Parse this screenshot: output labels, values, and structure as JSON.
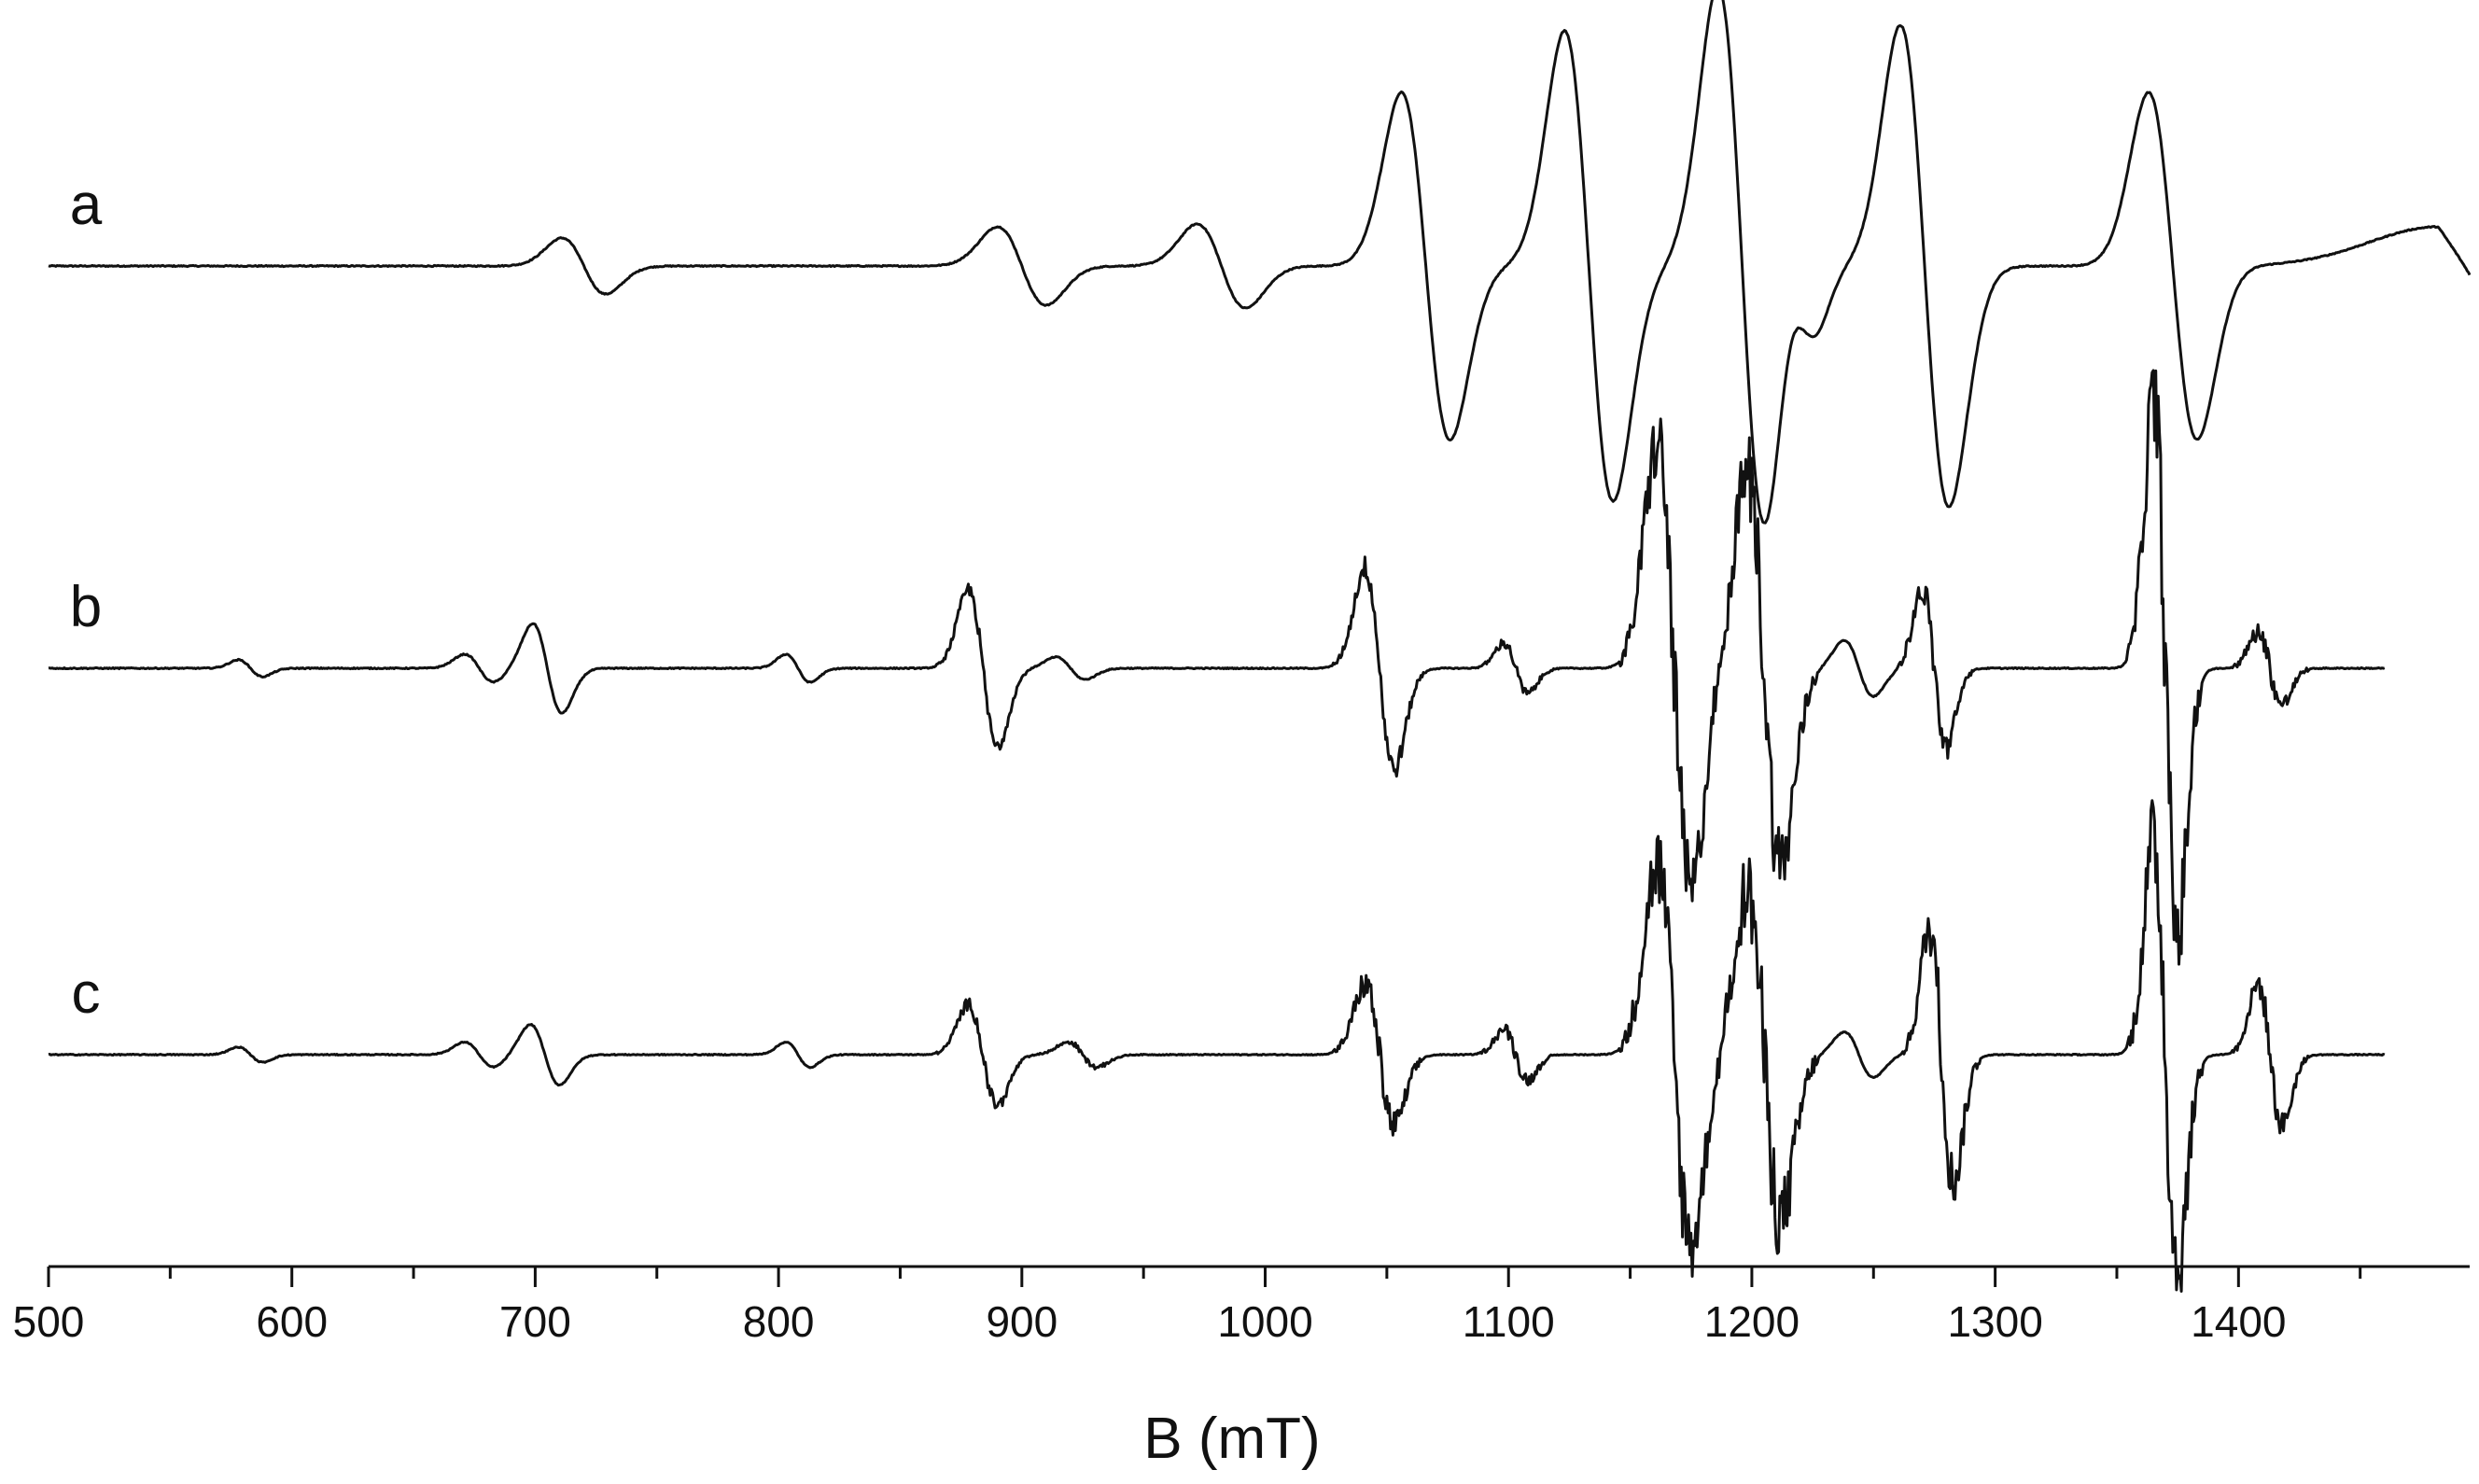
{
  "chart_data": {
    "type": "line",
    "title": "",
    "xlabel": "B (mT)",
    "ylabel": "",
    "xlim": [
      500,
      1495
    ],
    "x_ticks": [
      500,
      600,
      700,
      800,
      900,
      1000,
      1100,
      1200,
      1300,
      1400
    ],
    "x_minor_step": 50,
    "grid": false,
    "legend": "none",
    "y_axis_shown": false,
    "line_color": "#111111",
    "series": [
      {
        "name": "a",
        "x_range": [
          500,
          1495
        ],
        "baseline": 0,
        "peaks": [
          {
            "center": 720,
            "amplitude": 0.1,
            "width": 9
          },
          {
            "center": 900,
            "amplitude": 0.14,
            "width": 10
          },
          {
            "center": 982,
            "amplitude": 0.15,
            "width": 10
          },
          {
            "center": 1066,
            "amplitude": 0.62,
            "width": 10
          },
          {
            "center": 1133,
            "amplitude": 0.84,
            "width": 10
          },
          {
            "center": 1196,
            "amplitude": 1.0,
            "width": 10
          },
          {
            "center": 1220,
            "amplitude": 0.2,
            "width": 7
          },
          {
            "center": 1271,
            "amplitude": 0.86,
            "width": 10
          },
          {
            "center": 1373,
            "amplitude": 0.62,
            "width": 10
          }
        ],
        "end_rise": {
          "center": 1482,
          "height": 0.14
        }
      },
      {
        "name": "b",
        "x_range": [
          500,
          1460
        ],
        "baseline": 0,
        "peaks": [
          {
            "center": 583,
            "amplitude": 0.03,
            "width": 5,
            "noise": 0
          },
          {
            "center": 677,
            "amplitude": 0.05,
            "width": 6,
            "noise": 0
          },
          {
            "center": 705,
            "amplitude": 0.16,
            "width": 6,
            "noise": 0
          },
          {
            "center": 808,
            "amplitude": 0.05,
            "width": 5,
            "noise": 0
          },
          {
            "center": 884,
            "amplitude": 0.28,
            "width": 6,
            "noise": 0.06
          },
          {
            "center": 920,
            "amplitude": 0.04,
            "width": 6,
            "noise": 0
          },
          {
            "center": 1047,
            "amplitude": 0.36,
            "width": 6,
            "noise": 0.1
          },
          {
            "center": 1103,
            "amplitude": 0.09,
            "width": 5,
            "noise": 0.04
          },
          {
            "center": 1168,
            "amplitude": 0.8,
            "width": 7,
            "noise": 0.35
          },
          {
            "center": 1205,
            "amplitude": 0.7,
            "width": 7,
            "noise": 0.35
          },
          {
            "center": 1244,
            "amplitude": 0.1,
            "width": 6,
            "noise": 0
          },
          {
            "center": 1275,
            "amplitude": 0.28,
            "width": 5,
            "noise": 0.12
          },
          {
            "center": 1370,
            "amplitude": 0.95,
            "width": 5,
            "noise": 0.45
          },
          {
            "center": 1413,
            "amplitude": 0.13,
            "width": 5,
            "noise": 0.08
          }
        ]
      },
      {
        "name": "c",
        "x_range": [
          500,
          1460
        ],
        "baseline": 0,
        "peaks": [
          {
            "center": 583,
            "amplitude": 0.03,
            "width": 5,
            "noise": 0
          },
          {
            "center": 677,
            "amplitude": 0.05,
            "width": 6,
            "noise": 0
          },
          {
            "center": 704,
            "amplitude": 0.12,
            "width": 6,
            "noise": 0
          },
          {
            "center": 808,
            "amplitude": 0.05,
            "width": 5,
            "noise": 0
          },
          {
            "center": 884,
            "amplitude": 0.2,
            "width": 6,
            "noise": 0.06
          },
          {
            "center": 925,
            "amplitude": 0.05,
            "width": 6,
            "noise": 0.02
          },
          {
            "center": 1047,
            "amplitude": 0.28,
            "width": 6,
            "noise": 0.14
          },
          {
            "center": 1103,
            "amplitude": 0.1,
            "width": 5,
            "noise": 0.06
          },
          {
            "center": 1168,
            "amplitude": 0.75,
            "width": 7,
            "noise": 0.4
          },
          {
            "center": 1205,
            "amplitude": 0.65,
            "width": 7,
            "noise": 0.4
          },
          {
            "center": 1244,
            "amplitude": 0.09,
            "width": 6,
            "noise": 0
          },
          {
            "center": 1278,
            "amplitude": 0.5,
            "width": 5,
            "noise": 0.25
          },
          {
            "center": 1370,
            "amplitude": 0.85,
            "width": 5,
            "noise": 0.45
          },
          {
            "center": 1413,
            "amplitude": 0.28,
            "width": 5,
            "noise": 0.12
          }
        ]
      }
    ]
  }
}
